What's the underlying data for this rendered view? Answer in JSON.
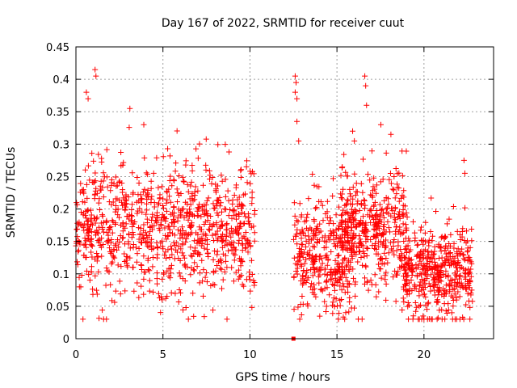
{
  "chart_data": {
    "type": "scatter",
    "title": "Day 167 of 2022, SRMTID for receiver cuut",
    "xlabel": "GPS time / hours",
    "ylabel": "SRMTID / TECUs",
    "xlim": [
      0,
      24
    ],
    "ylim": [
      0,
      0.45
    ],
    "x_ticks": [
      0,
      5,
      10,
      15,
      20
    ],
    "x_tick_labels": [
      "0",
      "5",
      "10",
      "15",
      "20"
    ],
    "y_ticks": [
      0,
      0.05,
      0.1,
      0.15,
      0.2,
      0.25,
      0.3,
      0.35,
      0.4,
      0.45
    ],
    "y_tick_labels": [
      "0",
      "0.05",
      "0.1",
      "0.15",
      "0.2",
      "0.25",
      "0.3",
      "0.35",
      "0.4",
      "0.45"
    ],
    "grid": true,
    "marker": "+",
    "series_color": "#ff0000",
    "segments": [
      {
        "x_start": 0.0,
        "x_end": 10.3,
        "center": 0.17,
        "spread": 0.05,
        "count": 950
      },
      {
        "x_start": 12.5,
        "x_end": 16.0,
        "center": 0.13,
        "spread": 0.045,
        "count": 350
      },
      {
        "x_start": 15.2,
        "x_end": 19.0,
        "center": 0.17,
        "spread": 0.05,
        "count": 400
      },
      {
        "x_start": 18.8,
        "x_end": 22.8,
        "center": 0.1,
        "spread": 0.035,
        "count": 450
      }
    ],
    "notable_points": [
      {
        "x": 0.7,
        "y": 0.37
      },
      {
        "x": 0.6,
        "y": 0.38
      },
      {
        "x": 1.1,
        "y": 0.415
      },
      {
        "x": 1.15,
        "y": 0.405
      },
      {
        "x": 3.1,
        "y": 0.355
      },
      {
        "x": 3.9,
        "y": 0.33
      },
      {
        "x": 12.6,
        "y": 0.405
      },
      {
        "x": 12.65,
        "y": 0.395
      },
      {
        "x": 12.6,
        "y": 0.38
      },
      {
        "x": 12.7,
        "y": 0.37
      },
      {
        "x": 12.7,
        "y": 0.335
      },
      {
        "x": 12.8,
        "y": 0.305
      },
      {
        "x": 16.6,
        "y": 0.405
      },
      {
        "x": 16.65,
        "y": 0.39
      },
      {
        "x": 16.7,
        "y": 0.36
      },
      {
        "x": 15.9,
        "y": 0.32
      },
      {
        "x": 16.0,
        "y": 0.305
      },
      {
        "x": 18.1,
        "y": 0.315
      },
      {
        "x": 22.3,
        "y": 0.275
      },
      {
        "x": 22.35,
        "y": 0.255
      },
      {
        "x": 9.8,
        "y": 0.265
      },
      {
        "x": 0.2,
        "y": 0.08
      },
      {
        "x": 4.9,
        "y": 0.065
      },
      {
        "x": 4.95,
        "y": 0.06
      },
      {
        "x": 14.4,
        "y": 0.05
      },
      {
        "x": 19.95,
        "y": 0.035
      },
      {
        "x": 20.0,
        "y": 0.03
      },
      {
        "x": 21.2,
        "y": 0.03
      },
      {
        "x": 21.6,
        "y": 0.04
      }
    ],
    "outlier_marker": {
      "x": 12.5,
      "y": 0.0
    }
  }
}
